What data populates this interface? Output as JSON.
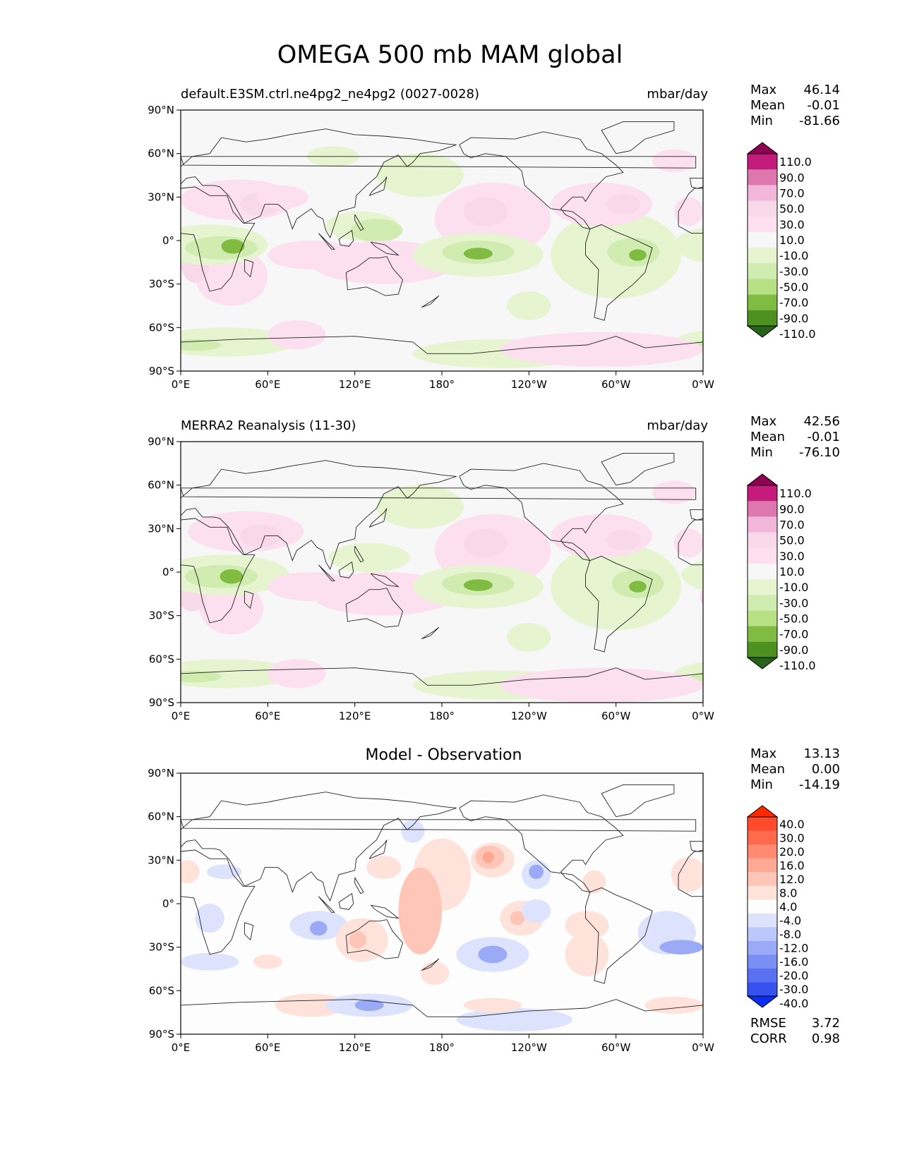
{
  "title": "OMEGA 500 mb MAM global",
  "lon_ticks": [
    "0°E",
    "60°E",
    "120°E",
    "180°",
    "120°W",
    "60°W",
    "0°W"
  ],
  "lat_ticks": [
    "90°N",
    "60°N",
    "30°N",
    "0°",
    "30°S",
    "60°S",
    "90°S"
  ],
  "panels": [
    {
      "title_left": "default.E3SM.ctrl.ne4pg2_ne4pg2 (0027-0028)",
      "title_right": "mbar/day",
      "stats": {
        "max_label": "Max",
        "max": "46.14",
        "mean_label": "Mean",
        "mean": "-0.01",
        "min_label": "Min",
        "min": "-81.66"
      },
      "colorbar_labels": [
        "110.0",
        "90.0",
        "70.0",
        "50.0",
        "30.0",
        "10.0",
        "-10.0",
        "-30.0",
        "-50.0",
        "-70.0",
        "-90.0",
        "-110.0"
      ],
      "colorbar_colors": [
        "#8e0152",
        "#c51b7d",
        "#de77ae",
        "#f1b6da",
        "#f7d9ea",
        "#fde0ef",
        "#f7f7f7",
        "#e6f5d0",
        "#d0ecb0",
        "#b8e186",
        "#7fbc41",
        "#4d9221",
        "#276419"
      ]
    },
    {
      "title_left": "MERRA2 Reanalysis (11-30)",
      "title_right": "mbar/day",
      "stats": {
        "max_label": "Max",
        "max": "42.56",
        "mean_label": "Mean",
        "mean": "-0.01",
        "min_label": "Min",
        "min": "-76.10"
      },
      "colorbar_labels": [
        "110.0",
        "90.0",
        "70.0",
        "50.0",
        "30.0",
        "10.0",
        "-10.0",
        "-30.0",
        "-50.0",
        "-70.0",
        "-90.0",
        "-110.0"
      ],
      "colorbar_colors": [
        "#8e0152",
        "#c51b7d",
        "#de77ae",
        "#f1b6da",
        "#f7d9ea",
        "#fde0ef",
        "#f7f7f7",
        "#e6f5d0",
        "#d0ecb0",
        "#b8e186",
        "#7fbc41",
        "#4d9221",
        "#276419"
      ]
    },
    {
      "title_center": "Model - Observation",
      "stats": {
        "max_label": "Max",
        "max": "13.13",
        "mean_label": "Mean",
        "mean": "0.00",
        "min_label": "Min",
        "min": "-14.19"
      },
      "colorbar_labels": [
        "40.0",
        "30.0",
        "20.0",
        "16.0",
        "12.0",
        "8.0",
        "4.0",
        "-4.0",
        "-8.0",
        "-12.0",
        "-16.0",
        "-20.0",
        "-30.0",
        "-40.0"
      ],
      "colorbar_colors": [
        "#ff2a00",
        "#ff4b2b",
        "#ff6a4d",
        "#ff8a70",
        "#ffa893",
        "#ffc6b7",
        "#ffe3da",
        "#fdfdfd",
        "#dde3fc",
        "#bcc8fa",
        "#9aaaf7",
        "#7a8ff4",
        "#5870f1",
        "#3552ef",
        "#0a2cf0"
      ],
      "rmse_label": "RMSE",
      "rmse": "3.72",
      "corr_label": "CORR",
      "corr": "0.98"
    }
  ]
}
